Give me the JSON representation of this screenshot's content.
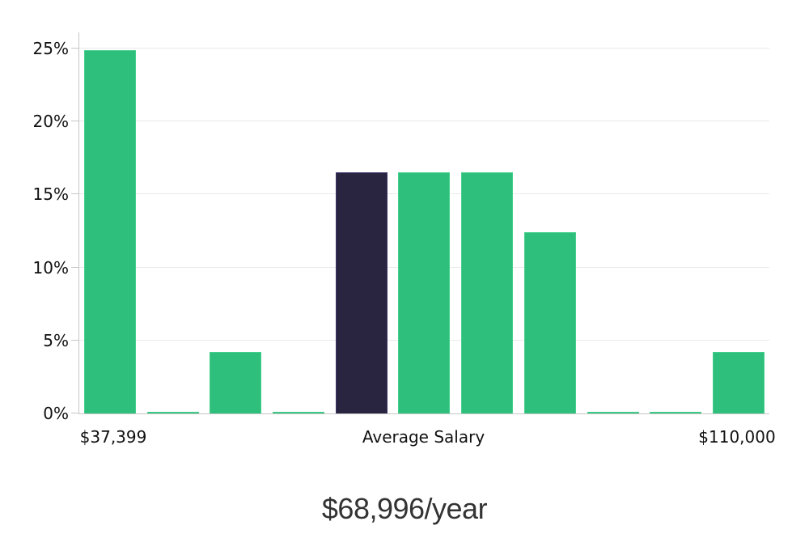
{
  "chart_data": {
    "type": "bar",
    "title": "$68,996/year",
    "xlabel": "",
    "ylabel": "",
    "categories": [
      "bin-1",
      "bin-2",
      "bin-3",
      "bin-4",
      "bin-5",
      "bin-6",
      "bin-7",
      "bin-8",
      "bin-9",
      "bin-10",
      "bin-11"
    ],
    "values": [
      24.9,
      0.1,
      4.2,
      0.1,
      16.5,
      16.5,
      16.5,
      12.4,
      0.1,
      0.1,
      4.2
    ],
    "unit": "%",
    "highlight_index": 4,
    "highlight_meaning": "Average Salary bar (dark navy), all other bars green",
    "ylim": [
      0,
      26.1
    ],
    "y_ticks": [
      {
        "value": 0,
        "label": "0%"
      },
      {
        "value": 5,
        "label": "5%"
      },
      {
        "value": 10,
        "label": "10%"
      },
      {
        "value": 15,
        "label": "15%"
      },
      {
        "value": 20,
        "label": "20%"
      },
      {
        "value": 25,
        "label": "25%"
      }
    ],
    "x_axis_labels": [
      {
        "text": "$37,399",
        "anchor": "min"
      },
      {
        "text": "Average Salary",
        "anchor": "middle"
      },
      {
        "text": "$110,000",
        "anchor": "max"
      }
    ],
    "legend": "none",
    "grid": "horizontal",
    "colors": {
      "bar": "#2dbf7b",
      "bar_edge": "#45cf8c",
      "highlight_bar": "#292440",
      "highlight_bar_edge": "#3c3566",
      "gridline": "#e9e9e9",
      "axis": "#c6c6c6",
      "tick_label": "#111111",
      "title": "#333333",
      "background": "#ffffff"
    }
  }
}
